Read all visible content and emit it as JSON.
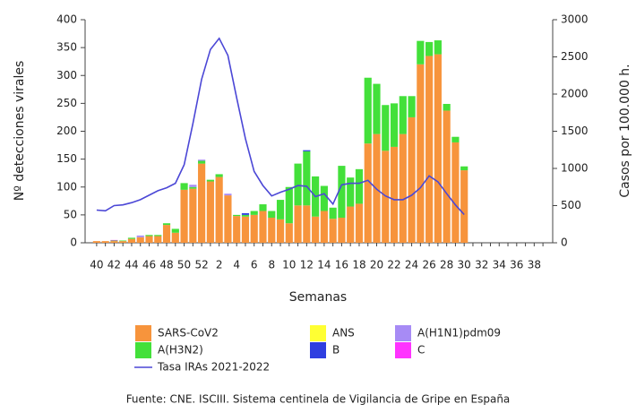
{
  "chart_data": {
    "type": "bar",
    "stacked": true,
    "categories": [
      "40",
      null,
      "42",
      null,
      "44",
      null,
      "46",
      null,
      "48",
      null,
      "50",
      null,
      "52",
      null,
      "2",
      null,
      "4",
      null,
      "6",
      null,
      "8",
      null,
      "10",
      null,
      "12",
      null,
      "14",
      null,
      "16",
      null,
      "18",
      null,
      "20",
      null,
      "22",
      null,
      "24",
      null,
      "26",
      null,
      "28",
      null,
      "30",
      null,
      "32",
      null,
      "34",
      null,
      "36",
      null,
      "38",
      null
    ],
    "x_label": "Semanas",
    "y_label": "Nº detecciones virales",
    "y2_label": "Casos por 100.000 h.",
    "ylim": [
      0,
      400
    ],
    "yticks": [
      0,
      50,
      100,
      150,
      200,
      250,
      300,
      350,
      400
    ],
    "y2lim": [
      0,
      3000
    ],
    "y2ticks": [
      0,
      500,
      1000,
      1500,
      2000,
      2500,
      3000
    ],
    "series": [
      {
        "name": "SARS-CoV2",
        "color": "#f7943c",
        "values": [
          3,
          3,
          3,
          3,
          7,
          10,
          12,
          12,
          32,
          18,
          95,
          97,
          142,
          110,
          118,
          85,
          48,
          47,
          50,
          57,
          45,
          42,
          35,
          67,
          67,
          47,
          57,
          43,
          45,
          65,
          70,
          178,
          195,
          165,
          172,
          195,
          225,
          320,
          335,
          338,
          237,
          180,
          130,
          null,
          null,
          null,
          null,
          null,
          null,
          null,
          null,
          null
        ]
      },
      {
        "name": "A(H3N2)",
        "color": "#43e03a",
        "values": [
          0,
          0,
          1,
          1,
          2,
          0,
          2,
          2,
          3,
          7,
          12,
          3,
          5,
          3,
          5,
          0,
          2,
          3,
          7,
          12,
          12,
          35,
          65,
          75,
          97,
          72,
          45,
          20,
          93,
          52,
          62,
          118,
          90,
          82,
          78,
          68,
          38,
          42,
          25,
          25,
          12,
          10,
          7,
          null,
          null,
          null,
          null,
          null,
          null,
          null,
          null,
          null
        ]
      },
      {
        "name": "ANS",
        "color": "#ffff33",
        "values": [
          0,
          0,
          0,
          0,
          0,
          0,
          0,
          0,
          0,
          0,
          0,
          0,
          0,
          0,
          0,
          0,
          0,
          0,
          0,
          0,
          0,
          0,
          0,
          0,
          0,
          0,
          0,
          0,
          0,
          0,
          0,
          0,
          0,
          0,
          0,
          0,
          0,
          0,
          0,
          0,
          0,
          0,
          0,
          null,
          null,
          null,
          null,
          null,
          null,
          null,
          null,
          null
        ]
      },
      {
        "name": "B",
        "color": "#2f3fe0",
        "values": [
          0,
          0,
          0,
          0,
          0,
          0,
          0,
          0,
          0,
          0,
          0,
          0,
          0,
          0,
          0,
          0,
          0,
          3,
          0,
          0,
          0,
          0,
          0,
          0,
          2,
          0,
          0,
          0,
          0,
          0,
          0,
          0,
          0,
          0,
          0,
          0,
          0,
          0,
          0,
          0,
          0,
          0,
          0,
          null,
          null,
          null,
          null,
          null,
          null,
          null,
          null,
          null
        ]
      },
      {
        "name": "A(H1N1)pdm09",
        "color": "#a78bf5",
        "values": [
          0,
          0,
          0,
          0,
          0,
          3,
          0,
          0,
          0,
          0,
          0,
          4,
          2,
          0,
          0,
          3,
          0,
          0,
          0,
          0,
          0,
          0,
          0,
          0,
          0,
          0,
          0,
          0,
          0,
          0,
          0,
          0,
          0,
          0,
          0,
          0,
          0,
          0,
          0,
          0,
          0,
          0,
          0,
          null,
          null,
          null,
          null,
          null,
          null,
          null,
          null,
          null
        ]
      },
      {
        "name": "C",
        "color": "#ff33ff",
        "values": [
          0,
          0,
          1,
          0,
          0,
          0,
          0,
          0,
          0,
          0,
          0,
          0,
          0,
          0,
          0,
          0,
          0,
          0,
          0,
          0,
          0,
          0,
          0,
          0,
          0,
          0,
          0,
          0,
          0,
          0,
          0,
          0,
          0,
          0,
          0,
          0,
          0,
          0,
          0,
          0,
          0,
          0,
          0,
          null,
          null,
          null,
          null,
          null,
          null,
          null,
          null,
          null
        ]
      },
      {
        "name": "Tasa IRAs 2021-2022",
        "type": "line",
        "axis": "y2",
        "color": "#4b47d6",
        "values": [
          440,
          430,
          500,
          510,
          540,
          580,
          640,
          700,
          740,
          800,
          1050,
          1600,
          2200,
          2600,
          2750,
          2520,
          1950,
          1400,
          960,
          770,
          630,
          680,
          720,
          770,
          760,
          620,
          660,
          520,
          780,
          800,
          800,
          840,
          720,
          630,
          580,
          580,
          640,
          740,
          900,
          820,
          660,
          510,
          380,
          null,
          null,
          null,
          null,
          null,
          null,
          null,
          null,
          null
        ]
      }
    ],
    "source": "Fuente: CNE. ISCIII. Sistema centinela de Vigilancia de Gripe en España"
  }
}
